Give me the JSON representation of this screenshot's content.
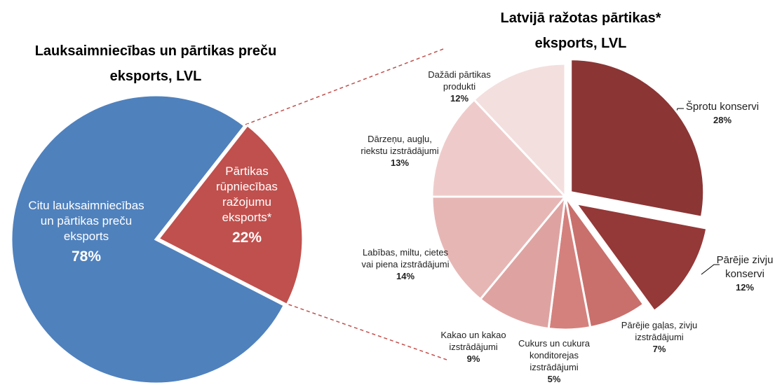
{
  "chart_data": [
    {
      "type": "pie",
      "title": "Lauksaimniecības un pārtikas preču eksports, LVL",
      "categories": [
        "Citu lauksaimniecības un pārtikas preču eksports",
        "Pārtikas rūpniecības ražojumu eksports*"
      ],
      "values": [
        78,
        22
      ],
      "value_labels": [
        "78%",
        "22%"
      ],
      "colors": [
        "#4f81bd",
        "#c0504d"
      ]
    },
    {
      "type": "pie",
      "title": "Latvijā ražotas pārtikas* eksports, LVL",
      "categories": [
        "Šprotu konservi",
        "Pārējie zivju konservi",
        "Pārējie gaļas, zivju izstrādājumi",
        "Cukurs un cukura konditorejas izstrādājumi",
        "Kakao un kakao izstrādājumi",
        "Labības, miltu, cietes vai piena izstrādājumi",
        "Dārzeņu, augļu, riekstu izstrādājumi",
        "Dažādi pārtikas produkti"
      ],
      "values": [
        28,
        12,
        7,
        5,
        9,
        14,
        13,
        12
      ],
      "value_labels": [
        "28%",
        "12%",
        "7%",
        "5%",
        "9%",
        "14%",
        "13%",
        "12%"
      ],
      "colors": [
        "#8b3535",
        "#953838",
        "#c9706c",
        "#d4817e",
        "#dea3a1",
        "#e6b6b5",
        "#eecbca",
        "#f3dfde"
      ]
    }
  ]
}
